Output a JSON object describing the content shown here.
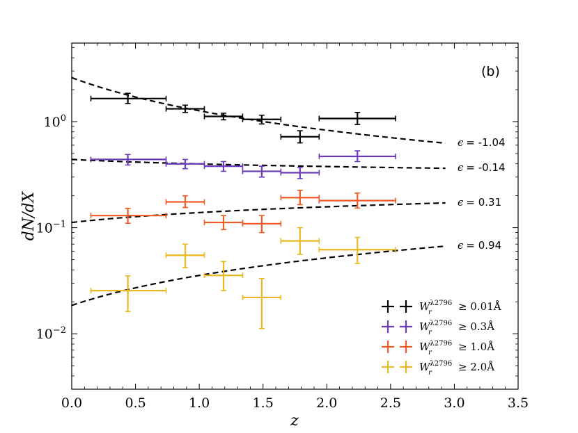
{
  "chart_data": {
    "type": "scatter",
    "panel_label": "(b)",
    "xlabel": "z",
    "ylabel": "dN/dX",
    "xlim": [
      0.0,
      3.5
    ],
    "ylim": [
      0.003,
      5.5
    ],
    "yscale": "log",
    "x_ticks": [
      {
        "value": 0.0,
        "label": "0.0"
      },
      {
        "value": 0.5,
        "label": "0.5"
      },
      {
        "value": 1.0,
        "label": "1.0"
      },
      {
        "value": 1.5,
        "label": "1.5"
      },
      {
        "value": 2.0,
        "label": "2.0"
      },
      {
        "value": 2.5,
        "label": "2.5"
      },
      {
        "value": 3.0,
        "label": "3.0"
      },
      {
        "value": 3.5,
        "label": "3.5"
      }
    ],
    "y_ticks": [
      {
        "value": 1,
        "base": "10",
        "exp": "0"
      },
      {
        "value": 0.1,
        "base": "10",
        "exp": "−1"
      },
      {
        "value": 0.01,
        "base": "10",
        "exp": "−2"
      }
    ],
    "legend_position": "lower-right",
    "series": [
      {
        "name": "W_r^λ2796 ≥ 0.01Å",
        "legend": {
          "prefix": "W",
          "sub": "r",
          "sup": "λ2796",
          "rel": "≥ 0.01Å"
        },
        "color": "#000000",
        "points": [
          {
            "x": 0.44,
            "xlo": 0.15,
            "xhi": 0.74,
            "y": 1.65,
            "ylo": 1.48,
            "yhi": 1.85
          },
          {
            "x": 0.89,
            "xlo": 0.74,
            "xhi": 1.04,
            "y": 1.32,
            "ylo": 1.22,
            "yhi": 1.43
          },
          {
            "x": 1.19,
            "xlo": 1.04,
            "xhi": 1.34,
            "y": 1.12,
            "ylo": 1.04,
            "yhi": 1.2
          },
          {
            "x": 1.49,
            "xlo": 1.34,
            "xhi": 1.64,
            "y": 1.05,
            "ylo": 0.95,
            "yhi": 1.15
          },
          {
            "x": 1.79,
            "xlo": 1.64,
            "xhi": 1.94,
            "y": 0.72,
            "ylo": 0.63,
            "yhi": 0.82
          },
          {
            "x": 2.24,
            "xlo": 1.94,
            "xhi": 2.54,
            "y": 1.07,
            "ylo": 0.94,
            "yhi": 1.22
          }
        ],
        "fit": {
          "label_symbol": "ϵ",
          "label_value": "= -1.04",
          "y0": 2.6,
          "epsilon": -1.04
        }
      },
      {
        "name": "W_r^λ2796 ≥ 0.3Å",
        "legend": {
          "prefix": "W",
          "sub": "r",
          "sup": "λ2796",
          "rel": "≥ 0.3Å"
        },
        "color": "#6a3cb8",
        "points": [
          {
            "x": 0.44,
            "xlo": 0.15,
            "xhi": 0.74,
            "y": 0.44,
            "ylo": 0.39,
            "yhi": 0.49
          },
          {
            "x": 0.89,
            "xlo": 0.74,
            "xhi": 1.04,
            "y": 0.4,
            "ylo": 0.36,
            "yhi": 0.44
          },
          {
            "x": 1.19,
            "xlo": 1.04,
            "xhi": 1.34,
            "y": 0.38,
            "ylo": 0.34,
            "yhi": 0.42
          },
          {
            "x": 1.49,
            "xlo": 1.34,
            "xhi": 1.64,
            "y": 0.34,
            "ylo": 0.3,
            "yhi": 0.38
          },
          {
            "x": 1.79,
            "xlo": 1.64,
            "xhi": 1.94,
            "y": 0.33,
            "ylo": 0.29,
            "yhi": 0.37
          },
          {
            "x": 2.24,
            "xlo": 1.94,
            "xhi": 2.54,
            "y": 0.47,
            "ylo": 0.42,
            "yhi": 0.53
          }
        ],
        "fit": {
          "label_symbol": "ϵ",
          "label_value": "= -0.14",
          "y0": 0.44,
          "epsilon": -0.14
        }
      },
      {
        "name": "W_r^λ2796 ≥ 1.0Å",
        "legend": {
          "prefix": "W",
          "sub": "r",
          "sup": "λ2796",
          "rel": "≥ 1.0Å"
        },
        "color": "#f05a28",
        "points": [
          {
            "x": 0.44,
            "xlo": 0.15,
            "xhi": 0.74,
            "y": 0.13,
            "ylo": 0.11,
            "yhi": 0.152
          },
          {
            "x": 0.89,
            "xlo": 0.74,
            "xhi": 1.04,
            "y": 0.175,
            "ylo": 0.155,
            "yhi": 0.2
          },
          {
            "x": 1.19,
            "xlo": 1.04,
            "xhi": 1.34,
            "y": 0.112,
            "ylo": 0.096,
            "yhi": 0.13
          },
          {
            "x": 1.49,
            "xlo": 1.34,
            "xhi": 1.64,
            "y": 0.109,
            "ylo": 0.09,
            "yhi": 0.13
          },
          {
            "x": 1.79,
            "xlo": 1.64,
            "xhi": 1.94,
            "y": 0.192,
            "ylo": 0.165,
            "yhi": 0.225
          },
          {
            "x": 2.24,
            "xlo": 1.94,
            "xhi": 2.54,
            "y": 0.18,
            "ylo": 0.153,
            "yhi": 0.212
          }
        ],
        "fit": {
          "label_symbol": "ϵ",
          "label_value": "= 0.31",
          "y0": 0.112,
          "epsilon": 0.31
        }
      },
      {
        "name": "W_r^λ2796 ≥ 2.0Å",
        "legend": {
          "prefix": "W",
          "sub": "r",
          "sup": "λ2796",
          "rel": "≥ 2.0Å"
        },
        "color": "#e8b923",
        "points": [
          {
            "x": 0.44,
            "xlo": 0.15,
            "xhi": 0.74,
            "y": 0.0255,
            "ylo": 0.0162,
            "yhi": 0.0352
          },
          {
            "x": 0.89,
            "xlo": 0.74,
            "xhi": 1.04,
            "y": 0.055,
            "ylo": 0.042,
            "yhi": 0.07
          },
          {
            "x": 1.19,
            "xlo": 1.04,
            "xhi": 1.34,
            "y": 0.0355,
            "ylo": 0.0255,
            "yhi": 0.048
          },
          {
            "x": 1.49,
            "xlo": 1.34,
            "xhi": 1.64,
            "y": 0.022,
            "ylo": 0.0112,
            "yhi": 0.0332
          },
          {
            "x": 1.79,
            "xlo": 1.64,
            "xhi": 1.94,
            "y": 0.075,
            "ylo": 0.056,
            "yhi": 0.1
          },
          {
            "x": 2.24,
            "xlo": 1.94,
            "xhi": 2.54,
            "y": 0.062,
            "ylo": 0.046,
            "yhi": 0.081
          }
        ],
        "fit": {
          "label_symbol": "ϵ",
          "label_value": "= 0.94",
          "y0": 0.0185,
          "epsilon": 0.94
        }
      }
    ]
  }
}
